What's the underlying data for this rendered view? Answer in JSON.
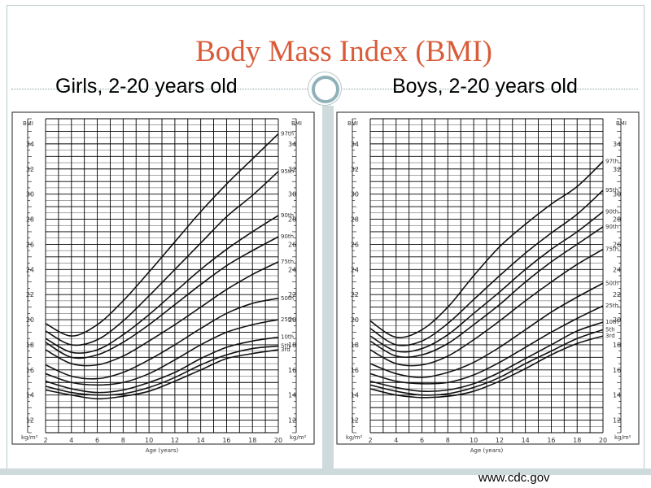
{
  "slide": {
    "title": "Body Mass Index (BMI)",
    "girls_heading": "Girls, 2-20 years old",
    "boys_heading": "Boys, 2-20 years old",
    "source": "www.cdc.gov",
    "colors": {
      "title": "#d95c3a",
      "accent": "#8fb1b7",
      "background": "#ffffff"
    }
  },
  "chart_data": [
    {
      "type": "line",
      "title": "",
      "xlabel": "Age (years)",
      "ylabel": "BMI",
      "y_unit": "kg/m²",
      "xlim": [
        2,
        20
      ],
      "ylim": [
        11,
        36
      ],
      "x_ticks": [
        2,
        4,
        6,
        8,
        10,
        12,
        14,
        16,
        18,
        20
      ],
      "y_ticks": [
        12,
        14,
        16,
        18,
        20,
        22,
        24,
        26,
        28,
        30,
        32,
        34
      ],
      "grid": true,
      "x": [
        2,
        4,
        6,
        8,
        10,
        12,
        14,
        16,
        18,
        20
      ],
      "series": [
        {
          "name": "97th",
          "values": [
            19.7,
            18.7,
            19.6,
            21.5,
            23.8,
            26.2,
            28.6,
            30.8,
            32.8,
            34.8
          ]
        },
        {
          "name": "95th",
          "values": [
            19.1,
            18.0,
            18.4,
            19.9,
            21.9,
            24.0,
            26.1,
            28.2,
            29.9,
            31.8
          ]
        },
        {
          "name": "90th",
          "values": [
            18.5,
            17.4,
            17.6,
            18.8,
            20.4,
            22.2,
            24.0,
            25.6,
            27.0,
            28.3
          ]
        },
        {
          "name": "90th",
          "values": [
            18.2,
            17.0,
            17.2,
            18.2,
            19.6,
            21.2,
            22.8,
            24.3,
            25.5,
            26.6
          ]
        },
        {
          "name": "75th",
          "values": [
            17.6,
            16.5,
            16.4,
            17.1,
            18.3,
            19.6,
            21.0,
            22.4,
            23.6,
            24.6
          ]
        },
        {
          "name": "50th",
          "values": [
            16.4,
            15.5,
            15.3,
            15.8,
            16.8,
            18.0,
            19.3,
            20.5,
            21.3,
            21.7
          ]
        },
        {
          "name": "25th",
          "values": [
            15.7,
            15.0,
            14.8,
            15.0,
            15.7,
            16.8,
            18.0,
            19.0,
            19.6,
            20.0
          ]
        },
        {
          "name": "10th",
          "values": [
            15.1,
            14.5,
            14.2,
            14.4,
            15.0,
            15.8,
            16.9,
            17.8,
            18.3,
            18.6
          ]
        },
        {
          "name": "5th",
          "values": [
            14.7,
            14.2,
            14.0,
            14.1,
            14.6,
            15.4,
            16.4,
            17.2,
            17.7,
            17.9
          ]
        },
        {
          "name": "3rd",
          "values": [
            14.4,
            14.0,
            13.7,
            13.9,
            14.3,
            15.1,
            16.0,
            16.9,
            17.3,
            17.6
          ]
        }
      ]
    },
    {
      "type": "line",
      "title": "",
      "xlabel": "Age (years)",
      "ylabel": "BMI",
      "y_unit": "kg/m²",
      "xlim": [
        2,
        20
      ],
      "ylim": [
        11,
        36
      ],
      "x_ticks": [
        2,
        4,
        6,
        8,
        10,
        12,
        14,
        16,
        18,
        20
      ],
      "y_ticks": [
        12,
        14,
        16,
        18,
        20,
        22,
        24,
        26,
        28,
        30,
        32,
        34
      ],
      "grid": true,
      "x": [
        2,
        4,
        6,
        8,
        10,
        12,
        14,
        16,
        18,
        20
      ],
      "series": [
        {
          "name": "97th",
          "values": [
            19.9,
            18.6,
            19.2,
            21.0,
            23.5,
            25.8,
            27.6,
            29.2,
            30.6,
            32.6
          ]
        },
        {
          "name": "95th",
          "values": [
            19.3,
            18.0,
            18.3,
            19.7,
            21.6,
            23.5,
            25.3,
            26.9,
            28.4,
            30.3
          ]
        },
        {
          "name": "90th",
          "values": [
            18.7,
            17.5,
            17.7,
            18.8,
            20.5,
            22.2,
            24.0,
            25.6,
            27.0,
            28.6
          ]
        },
        {
          "name": "90th",
          "values": [
            18.3,
            17.1,
            17.2,
            18.1,
            19.6,
            21.2,
            23.0,
            24.6,
            26.0,
            27.4
          ]
        },
        {
          "name": "75th",
          "values": [
            17.6,
            16.5,
            16.4,
            17.1,
            18.4,
            19.9,
            21.5,
            23.0,
            24.4,
            25.6
          ]
        },
        {
          "name": "50th",
          "values": [
            16.5,
            15.7,
            15.4,
            15.8,
            16.6,
            17.8,
            19.2,
            20.6,
            21.8,
            22.9
          ]
        },
        {
          "name": "25th",
          "values": [
            15.7,
            15.1,
            14.9,
            15.0,
            15.6,
            16.6,
            17.8,
            19.0,
            20.1,
            21.1
          ]
        },
        {
          "name": "10th",
          "values": [
            15.1,
            14.6,
            14.3,
            14.4,
            14.9,
            15.8,
            16.9,
            18.0,
            19.1,
            19.8
          ]
        },
        {
          "name": "5th",
          "values": [
            14.8,
            14.3,
            14.0,
            14.1,
            14.6,
            15.4,
            16.5,
            17.5,
            18.5,
            19.2
          ]
        },
        {
          "name": "3rd",
          "values": [
            14.5,
            14.0,
            13.8,
            13.9,
            14.3,
            15.1,
            16.1,
            17.2,
            18.1,
            18.7
          ]
        }
      ]
    }
  ]
}
